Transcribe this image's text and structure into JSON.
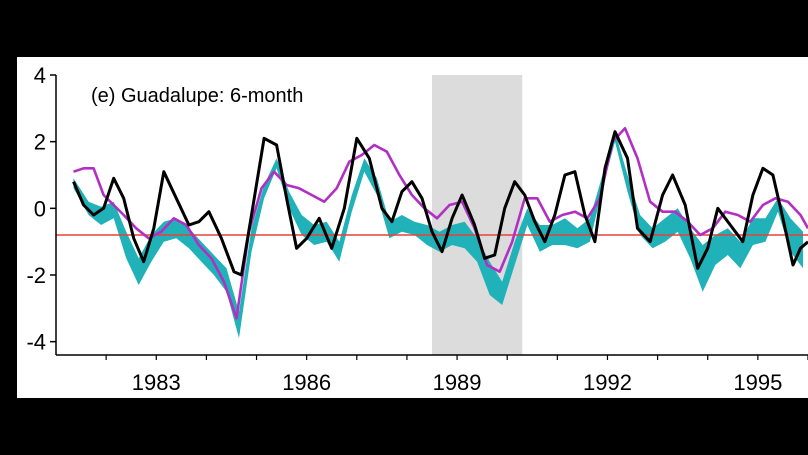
{
  "chart_data": {
    "type": "line",
    "title": "(e) Guadalupe: 6-month",
    "xlabel": "",
    "ylabel": "",
    "xlim": [
      1981.0,
      1996.0
    ],
    "ylim": [
      -4.4,
      4.0
    ],
    "xticks": [
      1983,
      1986,
      1989,
      1992,
      1995
    ],
    "yticks": [
      -4,
      -2,
      0,
      2,
      4
    ],
    "grid": false,
    "legend": "none",
    "threshold": {
      "y": -0.8,
      "color": "#e8413a"
    },
    "shaded_period": {
      "x": [
        1988.5,
        1990.3
      ],
      "color": "#dcdcdc"
    },
    "band": {
      "color": "#20b2b8",
      "x": [
        1981.35,
        1981.65,
        1981.9,
        1982.15,
        1982.4,
        1982.65,
        1982.9,
        1983.15,
        1983.4,
        1983.65,
        1983.9,
        1984.15,
        1984.4,
        1984.65,
        1984.9,
        1985.15,
        1985.4,
        1985.65,
        1985.9,
        1986.15,
        1986.4,
        1986.65,
        1986.9,
        1987.15,
        1987.4,
        1987.65,
        1987.9,
        1988.15,
        1988.4,
        1988.65,
        1988.9,
        1989.15,
        1989.4,
        1989.65,
        1989.9,
        1990.15,
        1990.4,
        1990.65,
        1990.9,
        1991.15,
        1991.4,
        1991.65,
        1991.9,
        1992.15,
        1992.4,
        1992.65,
        1992.9,
        1993.15,
        1993.4,
        1993.65,
        1993.9,
        1994.15,
        1994.4,
        1994.65,
        1994.9,
        1995.15,
        1995.4,
        1995.65,
        1995.9
      ],
      "upper": [
        0.9,
        0.2,
        0.05,
        0.2,
        -0.7,
        -1.5,
        -0.8,
        -0.4,
        -0.3,
        -0.6,
        -1.0,
        -1.4,
        -1.8,
        -3.1,
        -0.6,
        0.7,
        1.5,
        0.5,
        -0.2,
        -0.5,
        -0.4,
        -1.0,
        0.4,
        1.5,
        0.9,
        -0.4,
        -0.2,
        -0.4,
        -0.5,
        -0.7,
        -0.5,
        -0.4,
        -0.9,
        -1.6,
        -2.2,
        -1.0,
        0.0,
        -0.5,
        -0.5,
        -0.3,
        -0.6,
        -0.3,
        1.0,
        2.3,
        1.0,
        -0.2,
        -0.6,
        -0.3,
        0.0,
        -0.6,
        -1.1,
        -0.8,
        -0.6,
        -1.0,
        -0.3,
        -0.3,
        0.3,
        -0.3,
        -0.7
      ],
      "lower": [
        0.6,
        -0.2,
        -0.5,
        -0.3,
        -1.5,
        -2.3,
        -1.6,
        -1.0,
        -0.9,
        -1.2,
        -1.6,
        -2.0,
        -2.5,
        -3.9,
        -1.3,
        0.3,
        1.2,
        0.0,
        -0.8,
        -1.1,
        -1.0,
        -1.6,
        -0.1,
        1.1,
        0.4,
        -0.9,
        -0.7,
        -0.8,
        -1.1,
        -1.3,
        -1.1,
        -1.2,
        -1.6,
        -2.6,
        -2.9,
        -1.7,
        -0.5,
        -1.3,
        -1.1,
        -1.1,
        -1.2,
        -1.0,
        0.6,
        2.0,
        0.5,
        -0.8,
        -1.2,
        -1.0,
        -0.7,
        -1.5,
        -2.5,
        -1.7,
        -1.4,
        -1.8,
        -1.1,
        -1.0,
        -0.1,
        -1.3,
        -1.8
      ]
    },
    "series": [
      {
        "color": "#b22fc4",
        "x": [
          1981.35,
          1981.55,
          1981.75,
          1981.95,
          1982.15,
          1982.35,
          1982.6,
          1982.85,
          1983.1,
          1983.35,
          1983.6,
          1983.85,
          1984.1,
          1984.35,
          1984.6,
          1984.85,
          1985.1,
          1985.35,
          1985.6,
          1985.85,
          1986.1,
          1986.35,
          1986.6,
          1986.85,
          1987.1,
          1987.35,
          1987.6,
          1987.85,
          1988.1,
          1988.35,
          1988.6,
          1988.85,
          1989.1,
          1989.35,
          1989.6,
          1989.85,
          1990.1,
          1990.35,
          1990.6,
          1990.85,
          1991.1,
          1991.35,
          1991.6,
          1991.85,
          1992.1,
          1992.35,
          1992.6,
          1992.85,
          1993.1,
          1993.35,
          1993.6,
          1993.85,
          1994.1,
          1994.35,
          1994.6,
          1994.85,
          1995.1,
          1995.35,
          1995.6,
          1995.85,
          1996.0
        ],
        "y": [
          1.1,
          1.2,
          1.2,
          0.4,
          0.1,
          -0.2,
          -0.6,
          -0.9,
          -0.7,
          -0.3,
          -0.5,
          -1.1,
          -1.5,
          -2.2,
          -3.3,
          -0.7,
          0.6,
          1.1,
          0.7,
          0.6,
          0.4,
          0.2,
          0.6,
          1.4,
          1.6,
          1.9,
          1.7,
          1.0,
          0.4,
          0.0,
          -0.3,
          0.1,
          0.2,
          -0.6,
          -1.7,
          -1.9,
          -1.0,
          0.3,
          0.3,
          -0.4,
          -0.2,
          -0.1,
          -0.3,
          0.3,
          2.0,
          2.4,
          1.5,
          0.2,
          -0.1,
          -0.1,
          -0.4,
          -0.8,
          -0.6,
          -0.1,
          -0.2,
          -0.4,
          0.1,
          0.3,
          0.2,
          -0.2,
          -0.6
        ]
      },
      {
        "color": "#000000",
        "x": [
          1981.35,
          1981.55,
          1981.75,
          1981.95,
          1982.15,
          1982.35,
          1982.55,
          1982.75,
          1982.95,
          1983.15,
          1983.4,
          1983.65,
          1983.85,
          1984.05,
          1984.3,
          1984.55,
          1984.7,
          1984.9,
          1985.15,
          1985.4,
          1985.6,
          1985.8,
          1986.0,
          1986.25,
          1986.5,
          1986.75,
          1987.0,
          1987.25,
          1987.5,
          1987.7,
          1987.9,
          1988.1,
          1988.3,
          1988.5,
          1988.7,
          1988.9,
          1989.1,
          1989.35,
          1989.55,
          1989.75,
          1989.95,
          1990.15,
          1990.35,
          1990.55,
          1990.75,
          1990.95,
          1991.15,
          1991.35,
          1991.55,
          1991.75,
          1991.95,
          1992.15,
          1992.4,
          1992.6,
          1992.85,
          1993.1,
          1993.3,
          1993.55,
          1993.8,
          1994.0,
          1994.2,
          1994.45,
          1994.7,
          1994.9,
          1995.1,
          1995.3,
          1995.5,
          1995.7,
          1995.85,
          1996.0
        ],
        "y": [
          0.8,
          0.1,
          -0.2,
          0.0,
          0.9,
          0.3,
          -0.9,
          -1.6,
          -0.6,
          1.1,
          0.3,
          -0.5,
          -0.4,
          -0.1,
          -0.9,
          -1.9,
          -2.0,
          -0.2,
          2.1,
          1.9,
          0.3,
          -1.2,
          -0.9,
          -0.3,
          -1.2,
          0.0,
          2.1,
          1.5,
          0.0,
          -0.4,
          0.5,
          0.8,
          0.3,
          -0.7,
          -1.3,
          -0.3,
          0.4,
          -0.5,
          -1.5,
          -1.4,
          0.0,
          0.8,
          0.4,
          -0.4,
          -1.0,
          -0.2,
          1.0,
          1.1,
          -0.2,
          -1.0,
          1.2,
          2.3,
          1.5,
          -0.6,
          -1.0,
          0.4,
          1.0,
          0.1,
          -1.8,
          -1.2,
          0.0,
          -0.5,
          -1.0,
          0.4,
          1.2,
          1.0,
          -0.3,
          -1.7,
          -1.2,
          -1.0
        ]
      }
    ]
  }
}
